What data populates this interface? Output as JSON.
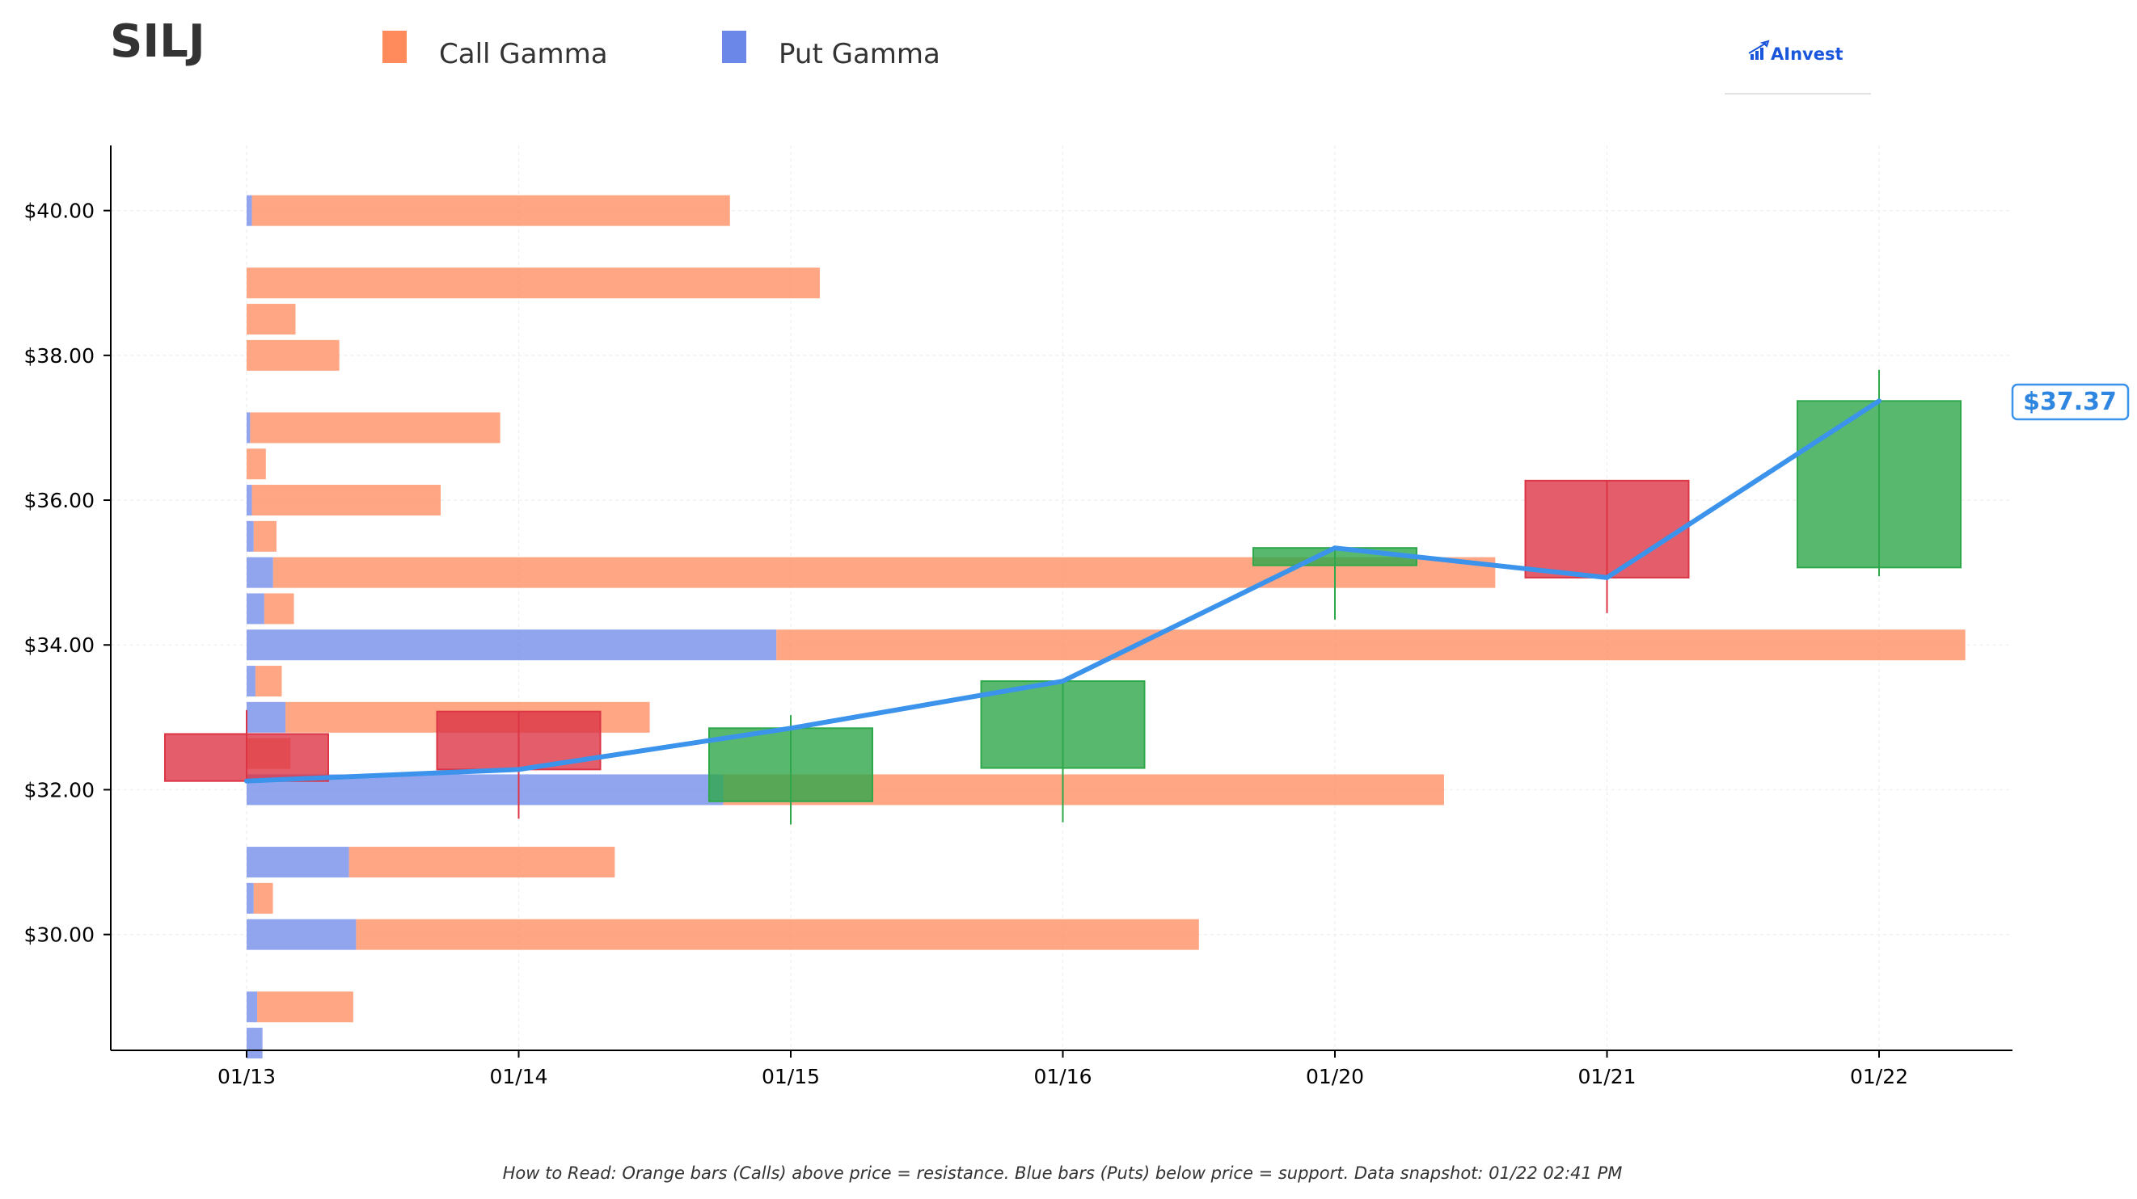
{
  "title": "SILJ",
  "legend": [
    {
      "label": "Call Gamma",
      "color": "#ff8a5c"
    },
    {
      "label": "Put Gamma",
      "color": "#6b87e8"
    }
  ],
  "logo": {
    "text": "AInvest",
    "icon": "bar-chart-arrow-icon"
  },
  "footnote": "How to Read: Orange bars (Calls) above price = resistance. Blue bars (Puts) below price = support. Data snapshot: 01/22 02:41 PM",
  "chart_data": {
    "type": "bar",
    "dates": [
      "01/13",
      "01/14",
      "01/15",
      "01/16",
      "01/20",
      "01/21",
      "01/22"
    ],
    "ylim": [
      28.4,
      40.9
    ],
    "y_ticks": [
      30,
      32,
      34,
      36,
      38,
      40
    ],
    "y_tick_labels": [
      "$30.00",
      "$32.00",
      "$34.00",
      "$36.00",
      "$38.00",
      "$40.00"
    ],
    "grid": true,
    "legend_position": "top",
    "candles": [
      {
        "date": "01/13",
        "open": 32.77,
        "high": 33.1,
        "low": 32.1,
        "close": 32.12
      },
      {
        "date": "01/14",
        "open": 33.08,
        "high": 33.08,
        "low": 31.6,
        "close": 32.28
      },
      {
        "date": "01/15",
        "open": 31.84,
        "high": 33.03,
        "low": 31.52,
        "close": 32.85
      },
      {
        "date": "01/16",
        "open": 32.3,
        "high": 33.5,
        "low": 31.55,
        "close": 33.5
      },
      {
        "date": "01/20",
        "open": 35.1,
        "high": 35.35,
        "low": 34.35,
        "close": 35.34
      },
      {
        "date": "01/21",
        "open": 36.27,
        "high": 36.27,
        "low": 34.44,
        "close": 34.93
      },
      {
        "date": "01/22",
        "open": 35.07,
        "high": 37.8,
        "low": 34.95,
        "close": 37.37
      }
    ],
    "close_line": {
      "color": "#3b93ec",
      "values": [
        32.12,
        32.28,
        32.85,
        33.5,
        35.34,
        34.93,
        37.37
      ]
    },
    "last_price_label": "$37.37",
    "gamma_by_strike": {
      "bar_scale_max": 1.0,
      "strikes": [
        40,
        39,
        38.5,
        38,
        37,
        36.5,
        36,
        35.5,
        35,
        34.5,
        34,
        33.5,
        33,
        32.5,
        32,
        31,
        30.5,
        30,
        29,
        28.5
      ],
      "call_gamma": [
        0.2707,
        0.3246,
        0.0277,
        0.0525,
        0.1416,
        0.0109,
        0.1069,
        0.0129,
        0.6921,
        0.0168,
        0.6733,
        0.0149,
        0.2063,
        0.0248,
        0.4081,
        0.1505,
        0.0109,
        0.4773,
        0.0544,
        0.0
      ],
      "put_gamma": [
        0.003,
        0.0,
        0.0,
        0.0,
        0.002,
        0.0,
        0.003,
        0.004,
        0.015,
        0.01,
        0.3,
        0.005,
        0.022,
        0.0,
        0.27,
        0.058,
        0.004,
        0.062,
        0.006,
        0.009
      ]
    },
    "colors": {
      "up": "#2ea84a",
      "down": "#dc3545",
      "call": "#ff8a5c",
      "put": "#6b87e8"
    }
  }
}
